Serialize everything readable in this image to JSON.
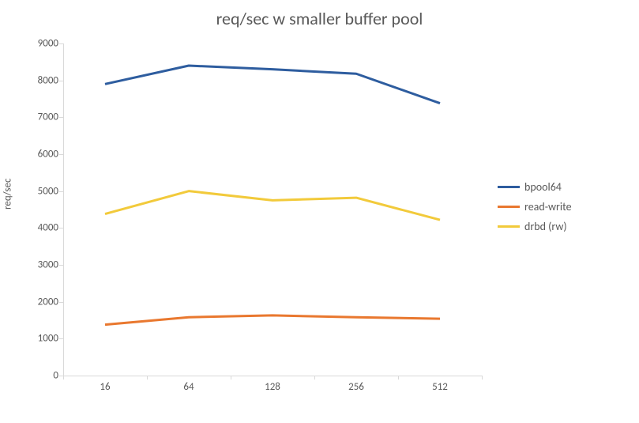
{
  "chart": {
    "type": "line",
    "title": "req/sec w smaller buffer pool",
    "title_fontsize": 22,
    "title_color": "#595959",
    "background_color": "#ffffff",
    "axis_line_color": "#d9d9d9",
    "tick_label_fontsize": 13,
    "tick_label_color": "#595959",
    "y_axis": {
      "title": "req/sec",
      "min": 0,
      "max": 9000,
      "tick_step": 1000,
      "ticks": [
        0,
        1000,
        2000,
        3000,
        4000,
        5000,
        6000,
        7000,
        8000,
        9000
      ]
    },
    "x_axis": {
      "categories": [
        "16",
        "64",
        "128",
        "256",
        "512"
      ]
    },
    "series": [
      {
        "name": "bpool64",
        "color": "#2e5d9f",
        "line_width": 3,
        "values": [
          7900,
          8400,
          8300,
          8180,
          7380
        ]
      },
      {
        "name": "read-write",
        "color": "#e9782f",
        "line_width": 3,
        "values": [
          1380,
          1580,
          1630,
          1580,
          1540
        ]
      },
      {
        "name": "drbd (rw)",
        "color": "#f2ca3b",
        "line_width": 3,
        "values": [
          4380,
          5000,
          4750,
          4820,
          4220
        ]
      }
    ],
    "legend": {
      "position": "right",
      "fontsize": 14,
      "items": [
        "bpool64",
        "read-write",
        "drbd (rw)"
      ]
    }
  }
}
